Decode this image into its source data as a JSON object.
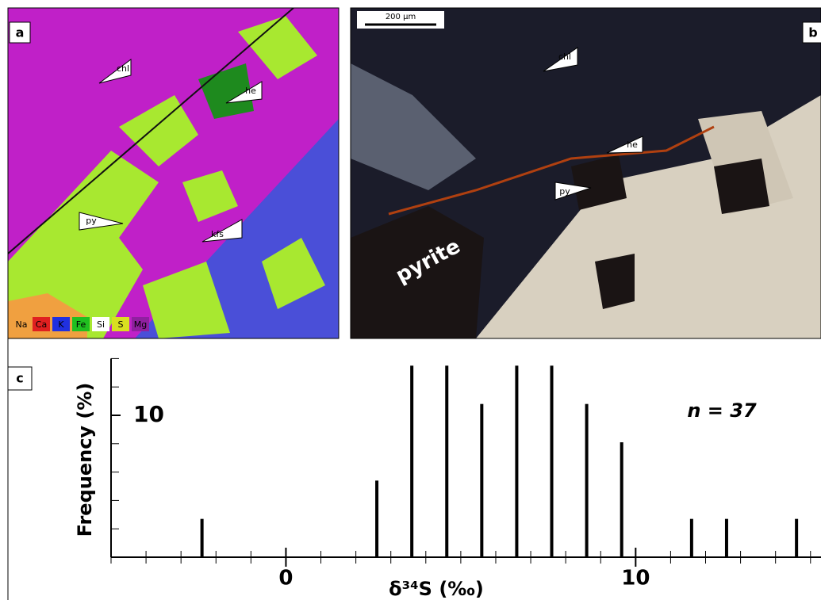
{
  "panels": {
    "a": {
      "label": "a",
      "pointers": [
        "chl",
        "he",
        "py",
        "kfs"
      ],
      "legend": [
        "Na",
        "Ca",
        "K",
        "Fe",
        "Si",
        "S",
        "Mg"
      ]
    },
    "b": {
      "label": "b",
      "scale": "200 µm",
      "pointers": [
        "chl",
        "he",
        "py"
      ],
      "mineral": "pyrite"
    },
    "c": {
      "label": "c"
    }
  },
  "chart_data": {
    "type": "bar",
    "ylabel": "Frequency (%)",
    "xlabel": "δ³⁴S (‰)",
    "annotation": "n = 37",
    "x": [
      -2.4,
      2.6,
      3.6,
      4.6,
      5.6,
      6.6,
      7.6,
      8.6,
      9.6,
      11.6,
      12.6,
      14.6
    ],
    "values": [
      2.7,
      5.4,
      13.5,
      13.5,
      10.8,
      13.5,
      13.5,
      10.8,
      8.1,
      2.7,
      2.7,
      2.7
    ],
    "color": "#000000",
    "xlim": [
      -5,
      15.3
    ],
    "ylim": [
      0,
      14
    ],
    "xticks": [
      0,
      10
    ],
    "xminorticks": [
      -5,
      -4,
      -3,
      -2,
      -1,
      1,
      2,
      3,
      4,
      5,
      6,
      7,
      8,
      9,
      11,
      12,
      13,
      14,
      15
    ],
    "yticks": [
      10
    ],
    "yminorticks": [
      2,
      4,
      6,
      8,
      12,
      14
    ]
  }
}
